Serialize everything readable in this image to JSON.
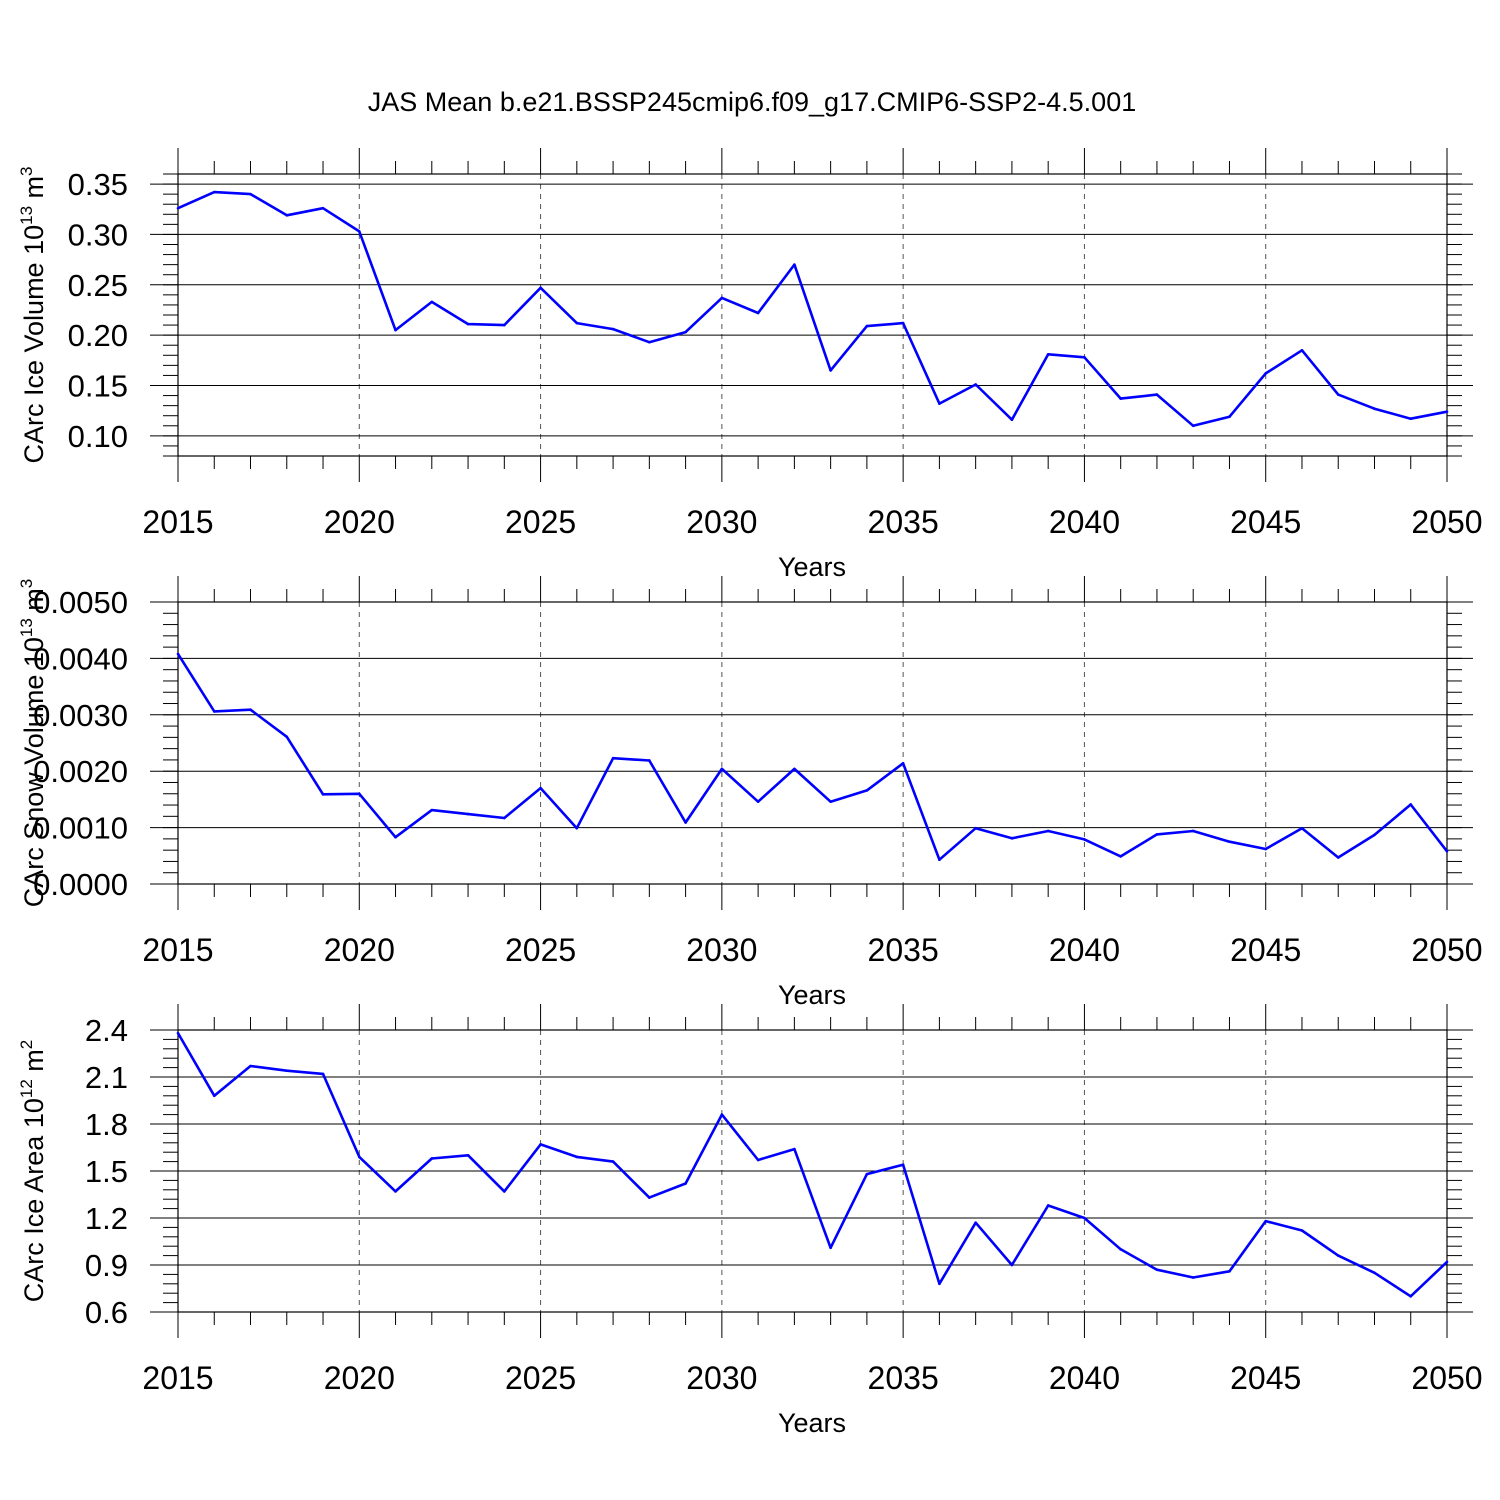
{
  "figure_title": "JAS Mean b.e21.BSSP245cmip6.f09_g17.CMIP6-SSP2-4.5.001",
  "line_color": "#0000ff",
  "chart_data": [
    {
      "type": "line",
      "title": "JAS Mean b.e21.BSSP245cmip6.f09_g17.CMIP6-SSP2-4.5.001",
      "xlabel": "Years",
      "ylabel": "CArc Ice Volume 10",
      "ylabel_exp": "13",
      "ylabel_unit": " m",
      "ylabel_unit_exp": "3",
      "xlim": [
        2015,
        2050
      ],
      "ylim": [
        0.08,
        0.36
      ],
      "xticks": [
        2015,
        2020,
        2025,
        2030,
        2035,
        2040,
        2045,
        2050
      ],
      "yticks": [
        0.1,
        0.15,
        0.2,
        0.25,
        0.3,
        0.35
      ],
      "ytick_labels": [
        "0.10",
        "0.15",
        "0.20",
        "0.25",
        "0.30",
        "0.35"
      ],
      "x": [
        2015,
        2016,
        2017,
        2018,
        2019,
        2020,
        2021,
        2022,
        2023,
        2024,
        2025,
        2026,
        2027,
        2028,
        2029,
        2030,
        2031,
        2032,
        2033,
        2034,
        2035,
        2036,
        2037,
        2038,
        2039,
        2040,
        2041,
        2042,
        2043,
        2044,
        2045,
        2046,
        2047,
        2048,
        2049,
        2050
      ],
      "values": [
        0.326,
        0.342,
        0.34,
        0.319,
        0.326,
        0.303,
        0.205,
        0.233,
        0.211,
        0.21,
        0.247,
        0.212,
        0.206,
        0.193,
        0.203,
        0.237,
        0.222,
        0.27,
        0.165,
        0.209,
        0.212,
        0.132,
        0.151,
        0.116,
        0.181,
        0.178,
        0.137,
        0.141,
        0.11,
        0.119,
        0.162,
        0.185,
        0.141,
        0.127,
        0.117,
        0.124
      ]
    },
    {
      "type": "line",
      "title": "",
      "xlabel": "Years",
      "ylabel": "CArc Snow Volume 10",
      "ylabel_exp": "13",
      "ylabel_unit": " m",
      "ylabel_unit_exp": "3",
      "xlim": [
        2015,
        2050
      ],
      "ylim": [
        0.0,
        0.005
      ],
      "xticks": [
        2015,
        2020,
        2025,
        2030,
        2035,
        2040,
        2045,
        2050
      ],
      "yticks": [
        0.0,
        0.001,
        0.002,
        0.003,
        0.004,
        0.005
      ],
      "ytick_labels": [
        "0.0000",
        "0.0010",
        "0.0020",
        "0.0030",
        "0.0040",
        "0.0050"
      ],
      "x": [
        2015,
        2016,
        2017,
        2018,
        2019,
        2020,
        2021,
        2022,
        2023,
        2024,
        2025,
        2026,
        2027,
        2028,
        2029,
        2030,
        2031,
        2032,
        2033,
        2034,
        2035,
        2036,
        2037,
        2038,
        2039,
        2040,
        2041,
        2042,
        2043,
        2044,
        2045,
        2046,
        2047,
        2048,
        2049,
        2050
      ],
      "values": [
        0.00408,
        0.00306,
        0.00309,
        0.00261,
        0.00159,
        0.0016,
        0.00083,
        0.00131,
        0.00124,
        0.00117,
        0.0017,
        0.00099,
        0.00223,
        0.00219,
        0.00109,
        0.00204,
        0.00146,
        0.00204,
        0.00146,
        0.00166,
        0.00214,
        0.00043,
        0.00099,
        0.00081,
        0.00094,
        0.00079,
        0.00049,
        0.00088,
        0.00094,
        0.00075,
        0.00062,
        0.00099,
        0.00047,
        0.00087,
        0.00141,
        0.00058
      ]
    },
    {
      "type": "line",
      "title": "",
      "xlabel": "Years",
      "ylabel": "CArc Ice Area 10",
      "ylabel_exp": "12",
      "ylabel_unit": " m",
      "ylabel_unit_exp": "2",
      "xlim": [
        2015,
        2050
      ],
      "ylim": [
        0.6,
        2.4
      ],
      "xticks": [
        2015,
        2020,
        2025,
        2030,
        2035,
        2040,
        2045,
        2050
      ],
      "yticks": [
        0.6,
        0.9,
        1.2,
        1.5,
        1.8,
        2.1,
        2.4
      ],
      "ytick_labels": [
        "0.6",
        "0.9",
        "1.2",
        "1.5",
        "1.8",
        "2.1",
        "2.4"
      ],
      "x": [
        2015,
        2016,
        2017,
        2018,
        2019,
        2020,
        2021,
        2022,
        2023,
        2024,
        2025,
        2026,
        2027,
        2028,
        2029,
        2030,
        2031,
        2032,
        2033,
        2034,
        2035,
        2036,
        2037,
        2038,
        2039,
        2040,
        2041,
        2042,
        2043,
        2044,
        2045,
        2046,
        2047,
        2048,
        2049,
        2050
      ],
      "values": [
        2.38,
        1.98,
        2.17,
        2.14,
        2.12,
        1.59,
        1.37,
        1.58,
        1.6,
        1.37,
        1.67,
        1.59,
        1.56,
        1.33,
        1.42,
        1.86,
        1.57,
        1.64,
        1.01,
        1.48,
        1.54,
        0.78,
        1.17,
        0.9,
        1.28,
        1.2,
        1.0,
        0.87,
        0.82,
        0.86,
        1.18,
        1.12,
        0.96,
        0.85,
        0.7,
        0.92
      ]
    }
  ]
}
